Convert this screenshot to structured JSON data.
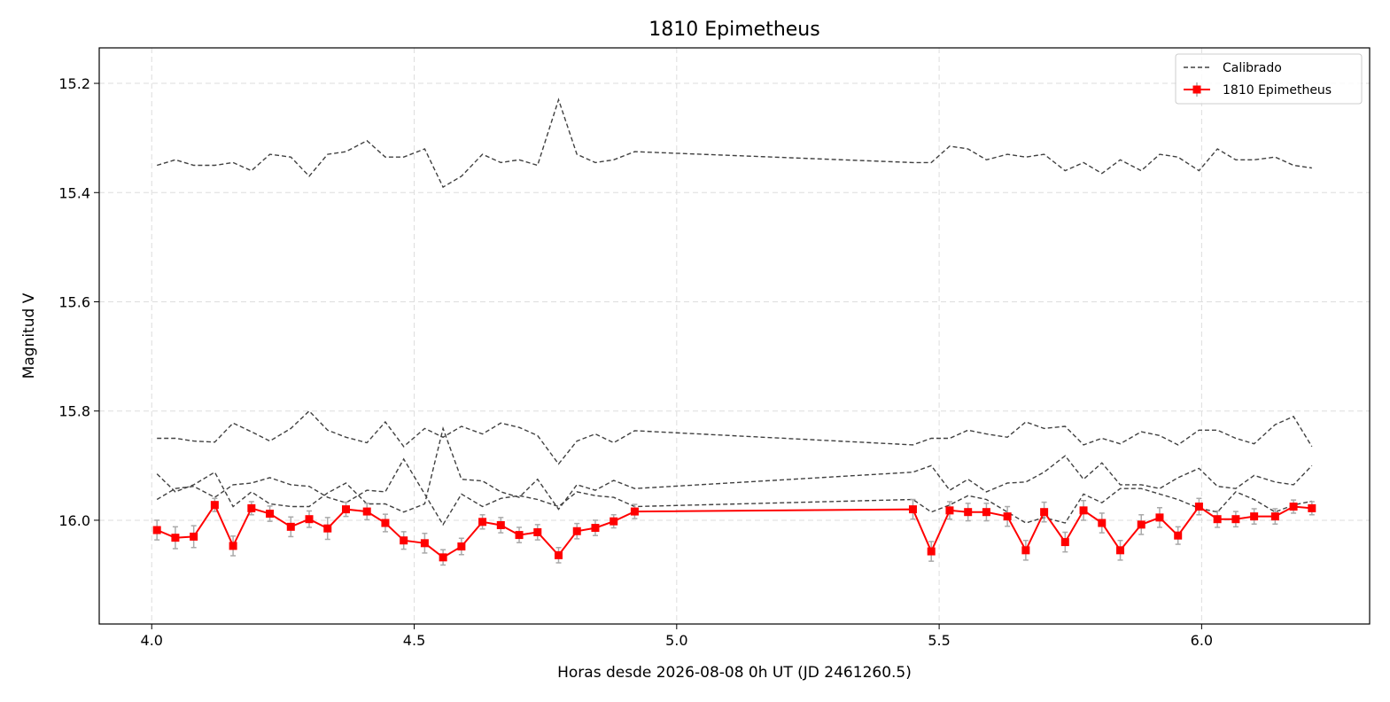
{
  "chart_data": {
    "type": "line",
    "title": "1810 Epimetheus",
    "xlabel": "Horas desde 2026-08-08 0h UT (JD 2461260.5)",
    "ylabel": "Magnitud V",
    "xlim": [
      3.9,
      6.32
    ],
    "ylim": [
      16.19,
      15.135
    ],
    "y_inverted": true,
    "grid": true,
    "legend_position": "top-right",
    "x_ticks": [
      4.0,
      4.5,
      5.0,
      5.5,
      6.0
    ],
    "x_tick_labels": [
      "4.0",
      "4.5",
      "5.0",
      "5.5",
      "6.0"
    ],
    "y_ticks": [
      15.2,
      15.4,
      15.6,
      15.8,
      16.0
    ],
    "y_tick_labels": [
      "15.2",
      "15.4",
      "15.6",
      "15.8",
      "16.0"
    ],
    "colors": {
      "target": "#ff0000",
      "comparison": "#404040",
      "errorbar": "#a9a9a9",
      "grid": "#dddddd"
    },
    "legend": [
      {
        "label": "Calibrado",
        "style": "dashed"
      },
      {
        "label": "1810 Epimetheus",
        "style": "solid-square"
      }
    ],
    "x": [
      4.01,
      4.045,
      4.08,
      4.12,
      4.155,
      4.19,
      4.225,
      4.265,
      4.3,
      4.335,
      4.37,
      4.41,
      4.445,
      4.48,
      4.52,
      4.555,
      4.59,
      4.63,
      4.665,
      4.7,
      4.735,
      4.775,
      4.81,
      4.845,
      4.88,
      4.92,
      5.45,
      5.485,
      5.52,
      5.555,
      5.59,
      5.63,
      5.665,
      5.7,
      5.74,
      5.775,
      5.81,
      5.845,
      5.885,
      5.92,
      5.955,
      5.995,
      6.03,
      6.065,
      6.1,
      6.14,
      6.175,
      6.21
    ],
    "series": [
      {
        "name": "Calibrado",
        "style": "dashed",
        "values": [
          15.35,
          15.34,
          15.35,
          15.35,
          15.345,
          15.36,
          15.33,
          15.335,
          15.37,
          15.33,
          15.325,
          15.305,
          15.335,
          15.335,
          15.32,
          15.39,
          15.37,
          15.33,
          15.345,
          15.34,
          15.35,
          15.23,
          15.33,
          15.345,
          15.34,
          15.325,
          15.345,
          15.345,
          15.315,
          15.32,
          15.34,
          15.33,
          15.335,
          15.33,
          15.36,
          15.345,
          15.365,
          15.34,
          15.36,
          15.33,
          15.335,
          15.36,
          15.32,
          15.34,
          15.34,
          15.335,
          15.35,
          15.355
        ]
      },
      {
        "style": "dashed",
        "values": [
          15.85,
          15.85,
          15.855,
          15.857,
          15.822,
          15.838,
          15.855,
          15.832,
          15.8,
          15.835,
          15.848,
          15.858,
          15.82,
          15.865,
          15.832,
          15.848,
          15.828,
          15.842,
          15.822,
          15.83,
          15.845,
          15.897,
          15.855,
          15.842,
          15.858,
          15.836,
          15.862,
          15.85,
          15.85,
          15.835,
          15.842,
          15.848,
          15.82,
          15.832,
          15.828,
          15.862,
          15.85,
          15.86,
          15.838,
          15.845,
          15.862,
          15.835,
          15.835,
          15.85,
          15.86,
          15.825,
          15.81,
          15.865
        ]
      },
      {
        "style": "dashed",
        "values": [
          15.915,
          15.948,
          15.935,
          15.912,
          15.975,
          15.948,
          15.97,
          15.975,
          15.975,
          15.95,
          15.932,
          15.97,
          15.97,
          15.985,
          15.97,
          15.832,
          15.925,
          15.928,
          15.948,
          15.958,
          15.925,
          15.98,
          15.935,
          15.945,
          15.927,
          15.942,
          15.912,
          15.9,
          15.945,
          15.925,
          15.948,
          15.932,
          15.93,
          15.912,
          15.882,
          15.925,
          15.895,
          15.935,
          15.935,
          15.942,
          15.922,
          15.905,
          15.938,
          15.942,
          15.918,
          15.93,
          15.935,
          15.9
        ]
      },
      {
        "style": "dashed",
        "values": [
          15.962,
          15.942,
          15.938,
          15.958,
          15.935,
          15.932,
          15.922,
          15.935,
          15.938,
          15.958,
          15.968,
          15.945,
          15.948,
          15.888,
          15.952,
          16.008,
          15.952,
          15.975,
          15.96,
          15.955,
          15.962,
          15.975,
          15.948,
          15.955,
          15.958,
          15.975,
          15.962,
          15.985,
          15.972,
          15.955,
          15.962,
          15.985,
          16.005,
          15.995,
          16.005,
          15.952,
          15.968,
          15.942,
          15.942,
          15.952,
          15.962,
          15.978,
          15.985,
          15.948,
          15.962,
          15.985,
          15.972,
          15.965
        ]
      },
      {
        "name": "1810 Epimetheus",
        "style": "solid-square",
        "values": [
          16.018,
          16.032,
          16.03,
          15.972,
          16.047,
          15.978,
          15.988,
          16.012,
          15.998,
          16.015,
          15.98,
          15.984,
          16.005,
          16.037,
          16.042,
          16.068,
          16.048,
          16.003,
          16.009,
          16.027,
          16.022,
          16.064,
          16.02,
          16.014,
          16.002,
          15.984,
          15.98,
          16.057,
          15.982,
          15.985,
          15.985,
          15.993,
          16.055,
          15.985,
          16.04,
          15.982,
          16.005,
          16.055,
          16.008,
          15.995,
          16.028,
          15.975,
          15.998,
          15.998,
          15.993,
          15.993,
          15.975,
          15.978
        ],
        "errors": [
          0.018,
          0.02,
          0.02,
          0.012,
          0.018,
          0.012,
          0.014,
          0.018,
          0.015,
          0.02,
          0.013,
          0.015,
          0.016,
          0.016,
          0.018,
          0.014,
          0.015,
          0.013,
          0.014,
          0.014,
          0.014,
          0.014,
          0.014,
          0.014,
          0.012,
          0.013,
          0.018,
          0.018,
          0.016,
          0.016,
          0.016,
          0.018,
          0.018,
          0.018,
          0.018,
          0.018,
          0.018,
          0.018,
          0.018,
          0.018,
          0.016,
          0.015,
          0.015,
          0.014,
          0.014,
          0.014,
          0.012,
          0.012
        ]
      }
    ]
  }
}
